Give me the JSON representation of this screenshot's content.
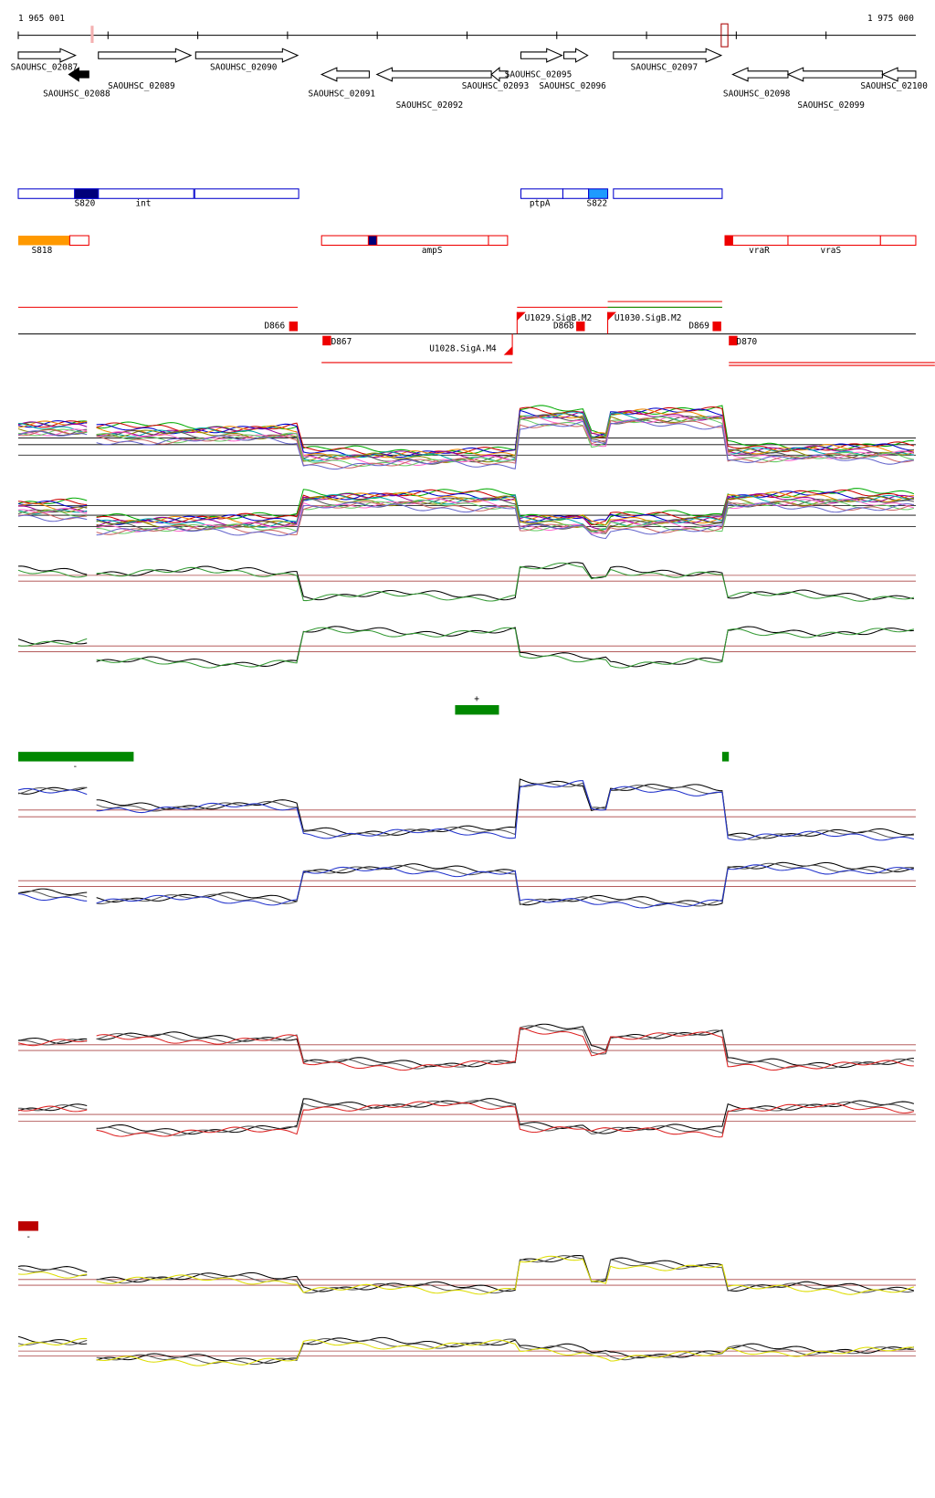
{
  "ruler": {
    "start": "1 965 001",
    "end": "1 975 000"
  },
  "genes": [
    "SAOUHSC_02087",
    "SAOUHSC_02088",
    "SAOUHSC_02089",
    "SAOUHSC_02090",
    "SAOUHSC_02091",
    "SAOUHSC_02092",
    "SAOUHSC_02093",
    "SAOUHSC_02095",
    "SAOUHSC_02096",
    "SAOUHSC_02097",
    "SAOUHSC_02098",
    "SAOUHSC_02099",
    "SAOUHSC_02100"
  ],
  "blue_features": [
    "S820",
    "int",
    "ptpA",
    "S822"
  ],
  "red_features": [
    "S818",
    "ampS",
    "vraR",
    "vraS"
  ],
  "sites": [
    "D866",
    "D867",
    "U1028.SigA.M4",
    "U1029.SigB.M2",
    "D868",
    "U1030.SigB.M2",
    "D869",
    "D870"
  ],
  "strand_marks": [
    "+",
    "-",
    "-"
  ]
}
